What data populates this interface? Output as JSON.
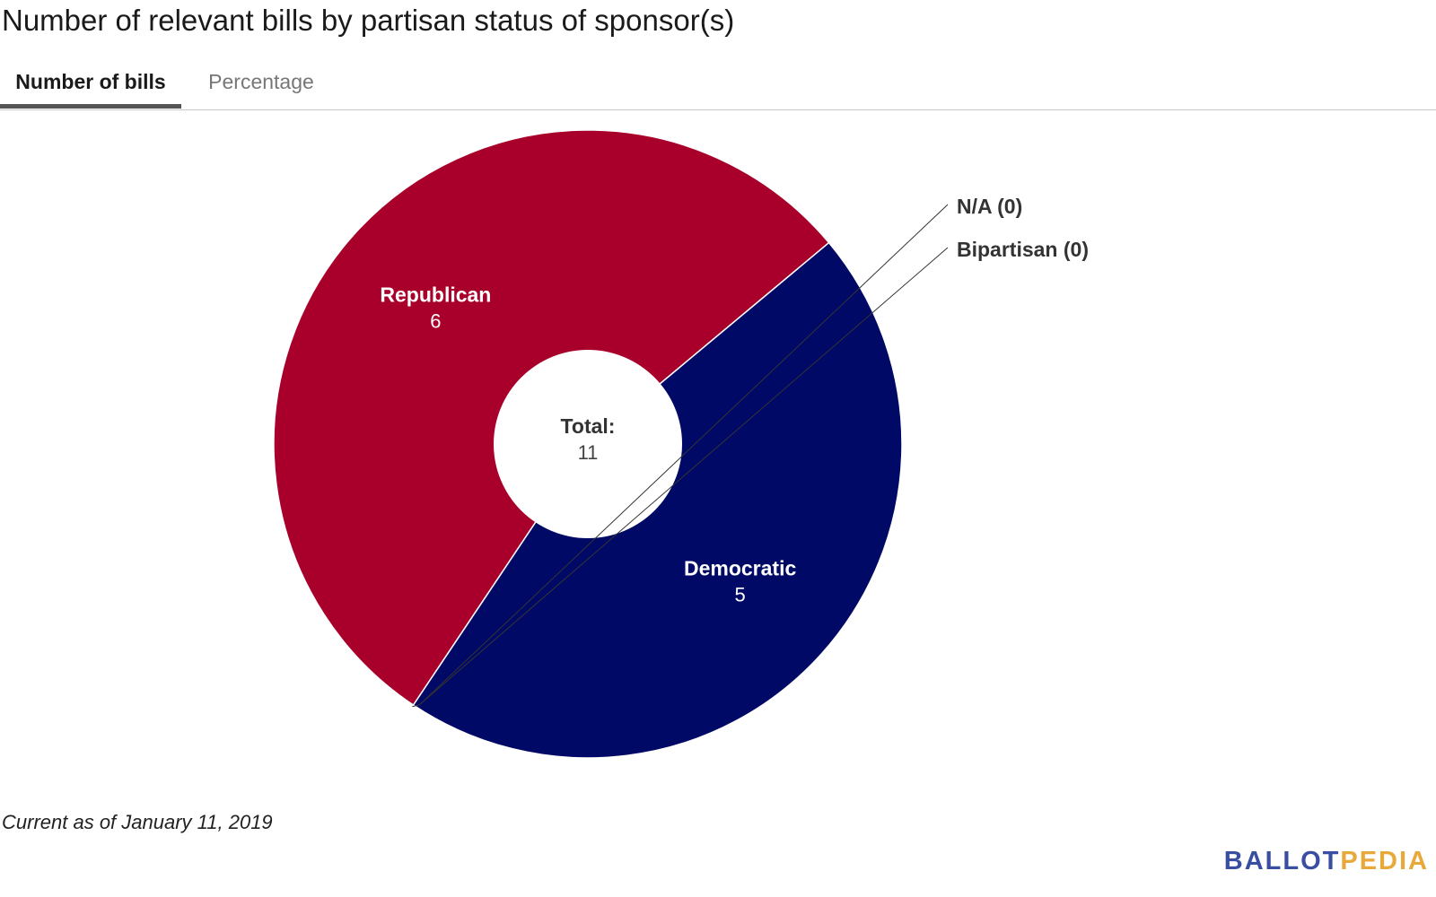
{
  "title": "Number of relevant bills by partisan status of sponsor(s)",
  "tabs": [
    {
      "label": "Number of bills",
      "active": true
    },
    {
      "label": "Percentage",
      "active": false
    }
  ],
  "chart_data": {
    "type": "pie",
    "donut": true,
    "slices": [
      {
        "label": "Republican",
        "value": 6,
        "color": "#a8002a"
      },
      {
        "label": "Democratic",
        "value": 5,
        "color": "#000a66"
      },
      {
        "label": "Bipartisan",
        "value": 0,
        "color": "#6b3a8c"
      },
      {
        "label": "N/A",
        "value": 0,
        "color": "#999999"
      }
    ],
    "center_label": "Total:",
    "center_value": "11",
    "outside_labels": [
      "N/A (0)",
      "Bipartisan (0)"
    ]
  },
  "footnote": "Current as of January 11, 2019",
  "logo": {
    "part1": "BALLOT",
    "part2": "PEDIA"
  }
}
